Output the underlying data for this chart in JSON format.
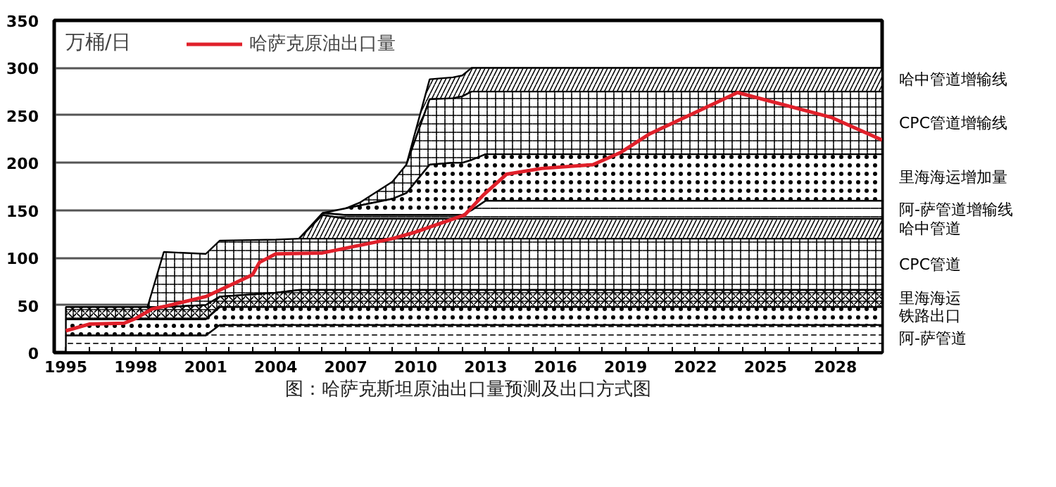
{
  "chart_data": {
    "type": "area",
    "stacked": true,
    "ylabel": "万桶/日",
    "annotations": [
      "图：哈萨克斯坦原油出口量预测及出口方式图"
    ],
    "x": [
      1995,
      1998.5,
      1999.2,
      2001,
      2001.6,
      2004,
      2005,
      2006,
      2007,
      2007.6,
      2009,
      2009.6,
      2010.6,
      2011.6,
      2012,
      2012.4,
      2013,
      2030
    ],
    "series": [
      {
        "name": "阿-萨管道",
        "color": "#000000",
        "values": [
          18,
          18,
          18,
          18,
          29,
          29,
          29,
          29,
          29,
          29,
          29,
          29,
          29,
          29,
          29,
          29,
          29,
          29
        ]
      },
      {
        "name": "铁路出口",
        "color": "#000000",
        "values": [
          17,
          17,
          17,
          17,
          19,
          19,
          19,
          19,
          19,
          19,
          19,
          19,
          19,
          19,
          19,
          19,
          19,
          19
        ]
      },
      {
        "name": "里海海运",
        "color": "#000000",
        "values": [
          13,
          13,
          13,
          15,
          11,
          15,
          18,
          18,
          18,
          18,
          18,
          18,
          18,
          18,
          18,
          18,
          18,
          18
        ]
      },
      {
        "name": "CPC管道",
        "color": "#000000",
        "values": [
          0,
          0,
          58,
          54,
          59,
          56,
          54,
          54,
          54,
          54,
          54,
          54,
          54,
          54,
          54,
          54,
          54,
          54
        ]
      },
      {
        "name": "哈中管道",
        "color": "#000000",
        "values": [
          null,
          null,
          null,
          null,
          null,
          null,
          0,
          25,
          21,
          21,
          21,
          21,
          21,
          21,
          21,
          21,
          21,
          21
        ]
      },
      {
        "name": "阿-萨管道增输线",
        "color": "#000000",
        "values": [
          null,
          null,
          null,
          null,
          null,
          null,
          0,
          2,
          4,
          4,
          4,
          4,
          4,
          4,
          4,
          9,
          19,
          19
        ]
      },
      {
        "name": "里海海运增加量",
        "color": "#000000",
        "values": [
          null,
          null,
          null,
          null,
          null,
          null,
          null,
          0,
          7,
          10,
          17,
          23,
          53,
          55,
          55,
          53,
          49,
          49
        ]
      },
      {
        "name": "CPC管道增输线",
        "color": "#000000",
        "values": [
          null,
          null,
          null,
          null,
          null,
          null,
          null,
          null,
          0,
          3,
          18,
          30,
          69,
          68,
          70,
          72,
          66,
          66
        ]
      },
      {
        "name": "哈中管道增输线",
        "color": "#000000",
        "values": [
          null,
          null,
          null,
          null,
          null,
          null,
          null,
          null,
          null,
          null,
          null,
          0,
          21,
          22,
          22,
          25,
          25,
          25
        ]
      },
      {
        "name": "哈萨克原油出口量",
        "type": "line",
        "color": "#e0202a",
        "x": [
          1995,
          1996,
          1997.5,
          1998,
          1998.7,
          1999.3,
          2001,
          2003,
          2003.3,
          2004,
          2006,
          2007,
          2009,
          2010,
          2012.1,
          2012.9,
          2013.9,
          2015.4,
          2017.6,
          2018.8,
          2020,
          2023.8,
          2027.8,
          2030
        ],
        "values": [
          23,
          30,
          31,
          36,
          46,
          49,
          59,
          82,
          95,
          104,
          105,
          110,
          120,
          127,
          145,
          166,
          188,
          194,
          198,
          211,
          230,
          274,
          248,
          224
        ]
      }
    ],
    "xlim": [
      1994.5,
      2030
    ],
    "xticks": [
      1995,
      {
        "value": 1996,
        "label": null
      },
      {
        "value": 1997,
        "label": null
      },
      1998,
      {
        "value": 1999,
        "label": null
      },
      {
        "value": 2000,
        "label": null
      },
      2001,
      {
        "value": 2002,
        "label": null
      },
      {
        "value": 2003,
        "label": null
      },
      2004,
      {
        "value": 2005,
        "label": null
      },
      {
        "value": 2006,
        "label": null
      },
      2007,
      {
        "value": 2008,
        "label": null
      },
      {
        "value": 2009,
        "label": null
      },
      2010,
      {
        "value": 2011,
        "label": null
      },
      {
        "value": 2012,
        "label": null
      },
      2013,
      {
        "value": 2014,
        "label": null
      },
      {
        "value": 2015,
        "label": null
      },
      2016,
      {
        "value": 2017,
        "label": null
      },
      {
        "value": 2018,
        "label": null
      },
      2019,
      {
        "value": 2020,
        "label": null
      },
      {
        "value": 2021,
        "label": null
      },
      2022,
      {
        "value": 2023,
        "label": null
      },
      {
        "value": 2024,
        "label": null
      },
      2025,
      {
        "value": 2026,
        "label": null
      },
      {
        "value": 2027,
        "label": null
      },
      2028,
      {
        "value": 2029,
        "label": null
      }
    ],
    "ylim": [
      0,
      350
    ],
    "yticks": [
      0,
      50,
      100,
      150,
      200,
      250,
      300,
      350
    ],
    "grid": "y",
    "legend": "top left"
  }
}
